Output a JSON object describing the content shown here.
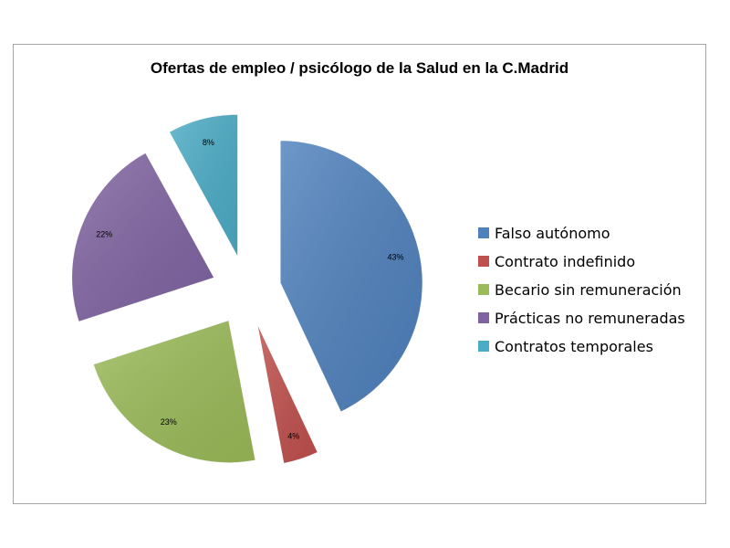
{
  "chart_data": {
    "type": "pie",
    "title": "Ofertas de empleo / psicólogo de la Salud en la C.Madrid",
    "categories": [
      "Falso autónomo",
      "Contrato indefinido",
      "Becario sin remuneración",
      "Prácticas no remuneradas",
      "Contratos temporales"
    ],
    "values": [
      43,
      4,
      23,
      22,
      8
    ],
    "labels": [
      "43%",
      "4%",
      "23%",
      "22%",
      "8%"
    ],
    "colors": [
      "#4f81bd",
      "#c0504d",
      "#9bbb59",
      "#8064a2",
      "#4bacc6"
    ],
    "exploded": true,
    "legend_position": "right"
  }
}
